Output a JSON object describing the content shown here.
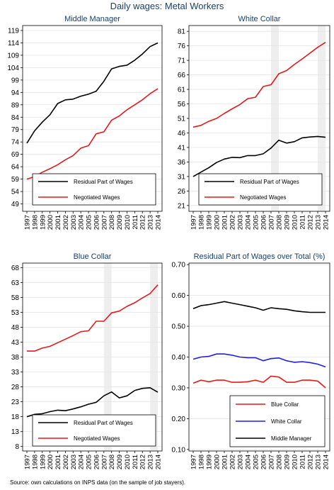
{
  "figure": {
    "title": "Daily wages: Metal Workers",
    "source": "Source: own calculations on INPS data (on the sample of job stayers)."
  },
  "chart_data": [
    {
      "id": "middle-manager",
      "type": "line",
      "title": "Middle Manager",
      "x": [
        "1997",
        "1998",
        "1999",
        "2000",
        "2001",
        "2002",
        "2003",
        "2004",
        "2005",
        "2006",
        "2007",
        "2008",
        "2009",
        "2010",
        "2011",
        "2012",
        "2013",
        "2014"
      ],
      "ylim": [
        46,
        121
      ],
      "yticks": [
        49,
        54,
        59,
        64,
        69,
        74,
        79,
        84,
        89,
        94,
        99,
        104,
        109,
        114,
        119
      ],
      "shaded_ranges": [],
      "series": [
        {
          "name": "Residual Part of Wages",
          "color": "#000000",
          "values": [
            73.5,
            78.5,
            82,
            85,
            89.5,
            91,
            91.3,
            92.5,
            93.3,
            94.5,
            98.5,
            103.5,
            104.5,
            105,
            107,
            109.5,
            112.5,
            114
          ]
        },
        {
          "name": "Negotiated Wages",
          "color": "#e31a1c",
          "values": [
            59,
            60,
            61.8,
            63.2,
            64.8,
            66.8,
            68.5,
            71.5,
            72.5,
            77.3,
            78.1,
            82.8,
            84.5,
            87,
            89,
            91,
            93.5,
            95.5
          ]
        }
      ],
      "legend": "bottom"
    },
    {
      "id": "white-collar",
      "type": "line",
      "title": "White Collar",
      "x": [
        "1997",
        "1998",
        "1999",
        "2000",
        "2001",
        "2002",
        "2003",
        "2004",
        "2005",
        "2006",
        "2007",
        "2008",
        "2009",
        "2010",
        "2011",
        "2012",
        "2013",
        "2014"
      ],
      "ylim": [
        19,
        83
      ],
      "yticks": [
        21,
        26,
        31,
        36,
        41,
        46,
        51,
        56,
        61,
        66,
        71,
        76,
        81
      ],
      "shaded_ranges": [
        [
          "2007",
          "2008"
        ],
        [
          "2013",
          "2014"
        ]
      ],
      "series": [
        {
          "name": "Residual Part of Wages",
          "color": "#000000",
          "values": [
            31,
            32.5,
            34,
            35.8,
            37,
            37.6,
            37.5,
            38.2,
            38.2,
            38.8,
            40.8,
            43.5,
            42.5,
            43,
            44.3,
            44.6,
            44.8,
            44.5
          ]
        },
        {
          "name": "Negotiated Wages",
          "color": "#e31a1c",
          "values": [
            48,
            48.6,
            50,
            51,
            52.7,
            54.3,
            55.8,
            57.8,
            58.3,
            62,
            62.6,
            66.4,
            67.5,
            69.6,
            71.5,
            73.5,
            75.5,
            77.2
          ]
        }
      ],
      "legend": "bottom"
    },
    {
      "id": "blue-collar",
      "type": "line",
      "title": "Blue Collar",
      "x": [
        "1997",
        "1998",
        "1999",
        "2000",
        "2001",
        "2002",
        "2003",
        "2004",
        "2005",
        "2006",
        "2007",
        "2008",
        "2009",
        "2010",
        "2011",
        "2012",
        "2013",
        "2014"
      ],
      "ylim": [
        6.5,
        69.5
      ],
      "yticks": [
        8,
        13,
        18,
        23,
        28,
        33,
        38,
        43,
        48,
        53,
        58,
        63,
        68
      ],
      "shaded_ranges": [
        [
          "2007",
          "2008"
        ],
        [
          "2013",
          "2014"
        ]
      ],
      "series": [
        {
          "name": "Residual Part of Wages",
          "color": "#000000",
          "values": [
            18,
            18.8,
            19,
            19.7,
            20.2,
            20,
            20.6,
            21.3,
            22.2,
            22.8,
            25,
            26.3,
            24.3,
            25,
            26.8,
            27.5,
            27.7,
            26.2
          ]
        },
        {
          "name": "Negotiated Wages",
          "color": "#e31a1c",
          "values": [
            40,
            40,
            41,
            41.6,
            42.8,
            44,
            45.2,
            46.5,
            46.8,
            50,
            50,
            52.8,
            53.4,
            55,
            56.2,
            57.8,
            59.3,
            62.2
          ]
        }
      ],
      "legend": "bottom"
    },
    {
      "id": "residual-share",
      "type": "line",
      "title": "Residual Part of Wages over Total (%)",
      "x": [
        "1997",
        "1998",
        "1999",
        "2000",
        "2001",
        "2002",
        "2003",
        "2004",
        "2005",
        "2006",
        "2007",
        "2008",
        "2009",
        "2010",
        "2011",
        "2012",
        "2013",
        "2014"
      ],
      "ylim": [
        0.095,
        0.705
      ],
      "yticks": [
        "0.10",
        "0.20",
        "0.30",
        "0.40",
        "0.50",
        "0.60",
        "0.70"
      ],
      "shaded_ranges": [],
      "series": [
        {
          "name": "Blue Collar",
          "color": "#e31a1c",
          "values": [
            0.315,
            0.325,
            0.32,
            0.325,
            0.325,
            0.318,
            0.318,
            0.32,
            0.325,
            0.318,
            0.338,
            0.335,
            0.318,
            0.318,
            0.325,
            0.325,
            0.322,
            0.3
          ]
        },
        {
          "name": "White Collar",
          "color": "#1f1fe0",
          "values": [
            0.393,
            0.4,
            0.402,
            0.41,
            0.41,
            0.406,
            0.4,
            0.398,
            0.398,
            0.388,
            0.395,
            0.397,
            0.388,
            0.383,
            0.385,
            0.382,
            0.377,
            0.368
          ]
        },
        {
          "name": "Middle Manager",
          "color": "#000000",
          "values": [
            0.557,
            0.567,
            0.57,
            0.575,
            0.58,
            0.575,
            0.57,
            0.565,
            0.56,
            0.552,
            0.56,
            0.557,
            0.555,
            0.55,
            0.547,
            0.545,
            0.545,
            0.545
          ]
        }
      ],
      "legend": "bottom-right"
    }
  ]
}
